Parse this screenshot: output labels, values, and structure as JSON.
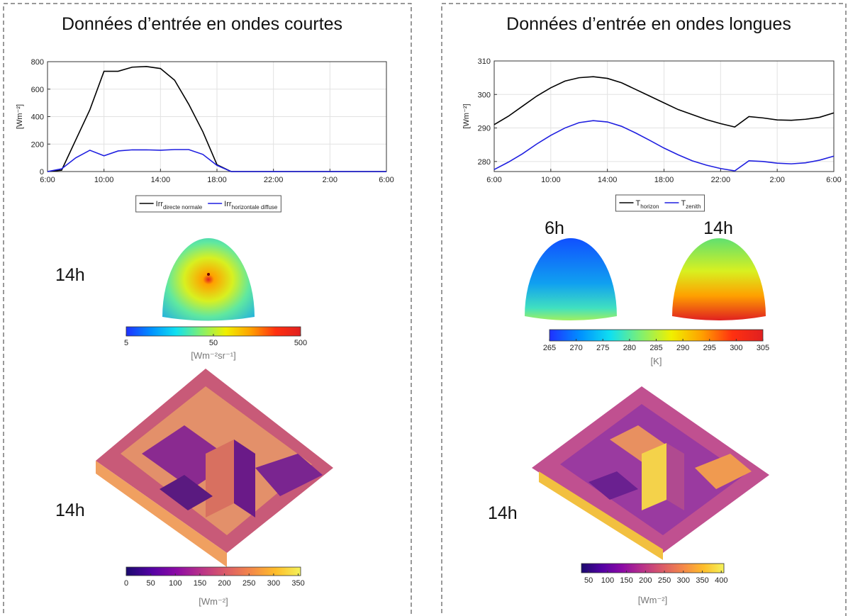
{
  "panels": [
    {
      "title": "Données d’entrée en ondes courtes",
      "time_labels": [
        "14h",
        "14h"
      ]
    },
    {
      "title": "Données d’entrée en ondes longues",
      "time_labels": [
        "6h",
        "14h",
        "14h"
      ]
    }
  ],
  "chart_data": [
    {
      "type": "line",
      "y_label": "[Wm⁻²]",
      "grid": true,
      "x": [
        6,
        7,
        8,
        9,
        10,
        11,
        12,
        13,
        14,
        15,
        16,
        17,
        18,
        19,
        20,
        21,
        22,
        23,
        24,
        25,
        26,
        27,
        28,
        29,
        30
      ],
      "xlim": [
        6,
        30
      ],
      "xticks": [
        {
          "value": 6,
          "label": "6:00"
        },
        {
          "value": 10,
          "label": "10:00"
        },
        {
          "value": 14,
          "label": "14:00"
        },
        {
          "value": 18,
          "label": "18:00"
        },
        {
          "value": 22,
          "label": "22:00"
        },
        {
          "value": 26,
          "label": "2:00"
        },
        {
          "value": 30,
          "label": "6:00"
        }
      ],
      "ylim": [
        0,
        800
      ],
      "yticks": [
        0,
        200,
        400,
        600,
        800
      ],
      "series": [
        {
          "name": "Irr",
          "name_sub": "directe normale",
          "color": "#000000",
          "values": [
            0,
            10,
            230,
            450,
            730,
            730,
            760,
            765,
            750,
            665,
            490,
            290,
            50,
            0,
            0,
            0,
            0,
            0,
            0,
            0,
            0,
            0,
            0,
            0,
            0
          ]
        },
        {
          "name": "Irr",
          "name_sub": "horizontale diffuse",
          "color": "#1f1fe0",
          "values": [
            0,
            20,
            100,
            155,
            115,
            150,
            158,
            158,
            155,
            160,
            160,
            125,
            45,
            0,
            0,
            0,
            0,
            0,
            0,
            0,
            0,
            0,
            0,
            0,
            0
          ]
        }
      ]
    },
    {
      "type": "line",
      "y_label": "[Wm⁻²]",
      "grid": true,
      "x": [
        6,
        7,
        8,
        9,
        10,
        11,
        12,
        13,
        14,
        15,
        16,
        17,
        18,
        19,
        20,
        21,
        22,
        23,
        24,
        25,
        26,
        27,
        28,
        29,
        30
      ],
      "xlim": [
        6,
        30
      ],
      "xticks": [
        {
          "value": 6,
          "label": "6:00"
        },
        {
          "value": 10,
          "label": "10:00"
        },
        {
          "value": 14,
          "label": "14:00"
        },
        {
          "value": 18,
          "label": "18:00"
        },
        {
          "value": 22,
          "label": "22:00"
        },
        {
          "value": 26,
          "label": "2:00"
        },
        {
          "value": 30,
          "label": "6:00"
        }
      ],
      "ylim": [
        277,
        310
      ],
      "yticks": [
        280,
        290,
        300,
        310
      ],
      "series": [
        {
          "name": "T",
          "name_sub": "horizon",
          "color": "#000000",
          "values": [
            291,
            293.5,
            296.5,
            299.5,
            302,
            304,
            305,
            305.3,
            304.8,
            303.5,
            301.5,
            299.5,
            297.5,
            295.5,
            294,
            292.5,
            291.3,
            290.3,
            293.4,
            293,
            292.4,
            292.3,
            292.6,
            293.2,
            294.5
          ]
        },
        {
          "name": "T",
          "name_sub": "zenith",
          "color": "#1f1fe0",
          "values": [
            277.6,
            279.8,
            282.3,
            285.2,
            287.8,
            290,
            291.6,
            292.2,
            291.8,
            290.5,
            288.5,
            286.3,
            284,
            282,
            280.2,
            278.9,
            277.9,
            277.2,
            280.2,
            280,
            279.5,
            279.3,
            279.6,
            280.4,
            281.6
          ]
        }
      ]
    },
    {
      "type": "colorbar",
      "label": "[Wm⁻²sr⁻¹]",
      "log": true,
      "xlim": [
        5,
        500
      ],
      "xticks": [
        5,
        50,
        500
      ],
      "colors": [
        "#1f30ff",
        "#0090ff",
        "#10e0f0",
        "#80f070",
        "#f0f000",
        "#ffa000",
        "#ff3010",
        "#e02020"
      ]
    },
    {
      "type": "colorbar",
      "label": "[K]",
      "log": false,
      "xlim": [
        265,
        305
      ],
      "xticks": [
        265,
        270,
        275,
        280,
        285,
        290,
        295,
        300,
        305
      ],
      "colors": [
        "#1f30ff",
        "#0090ff",
        "#10e0f0",
        "#80f070",
        "#f0f000",
        "#ffa000",
        "#ff3010",
        "#e02020"
      ]
    },
    {
      "type": "colorbar",
      "label": "[Wm⁻²]",
      "log": false,
      "xlim": [
        0,
        355
      ],
      "xticks": [
        0,
        50,
        100,
        150,
        200,
        250,
        300,
        350
      ],
      "colors": [
        "#1a0a6e",
        "#5302a3",
        "#8b0aa5",
        "#b83289",
        "#db5c68",
        "#f48849",
        "#febd2a",
        "#f4f25a"
      ]
    },
    {
      "type": "colorbar",
      "label": "[Wm⁻²]",
      "log": false,
      "xlim": [
        31,
        407
      ],
      "xticks": [
        50,
        100,
        150,
        200,
        250,
        300,
        350,
        400
      ],
      "colors": [
        "#1a0a6e",
        "#5302a3",
        "#8b0aa5",
        "#b83289",
        "#db5c68",
        "#f48849",
        "#febd2a",
        "#f4f25a"
      ]
    }
  ]
}
